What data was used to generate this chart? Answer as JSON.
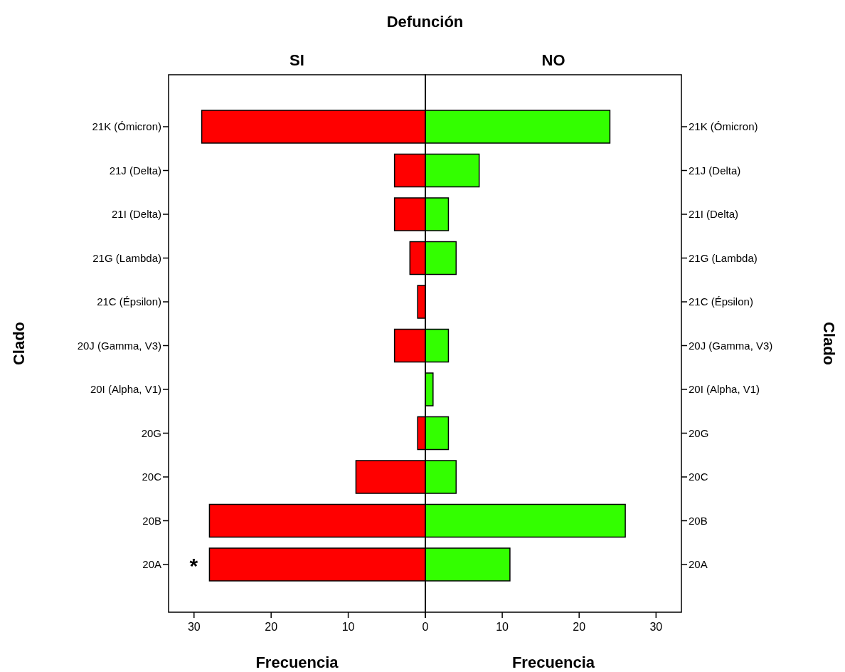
{
  "chart_data": [
    {
      "type": "bar",
      "orientation": "horizontal",
      "title": "Defunción",
      "subtitle": "SI",
      "xlabel": "Frecuencia",
      "ylabel": "Clado",
      "categories": [
        "21K (Ómicron)",
        "21J (Delta)",
        "21I (Delta)",
        "21G (Lambda)",
        "21C (Épsilon)",
        "20J (Gamma, V3)",
        "20I (Alpha, V1)",
        "20G",
        "20C",
        "20B",
        "20A"
      ],
      "series": [
        {
          "color": "#ff0000",
          "values": [
            29,
            4,
            4,
            2,
            1,
            4,
            0,
            1,
            9,
            28,
            28
          ]
        }
      ],
      "xlim": [
        33.3,
        0
      ],
      "xticks": [
        30,
        20,
        10,
        0
      ],
      "grid": false,
      "annotations": [
        "*"
      ]
    },
    {
      "type": "bar",
      "orientation": "horizontal",
      "subtitle": "NO",
      "xlabel": "Frecuencia",
      "ylabel": "Clado",
      "categories": [
        "21K (Ómicron)",
        "21J (Delta)",
        "21I (Delta)",
        "21G (Lambda)",
        "21C (Épsilon)",
        "20J (Gamma, V3)",
        "20I (Alpha, V1)",
        "20G",
        "20C",
        "20B",
        "20A"
      ],
      "series": [
        {
          "color": "#33ff00",
          "values": [
            24,
            7,
            3,
            4,
            0,
            3,
            1,
            3,
            4,
            26,
            11
          ]
        }
      ],
      "xlim": [
        0,
        33.3
      ],
      "xticks": [
        {
          "value": 0,
          "label": null
        },
        10,
        20,
        30
      ],
      "grid": false
    }
  ]
}
